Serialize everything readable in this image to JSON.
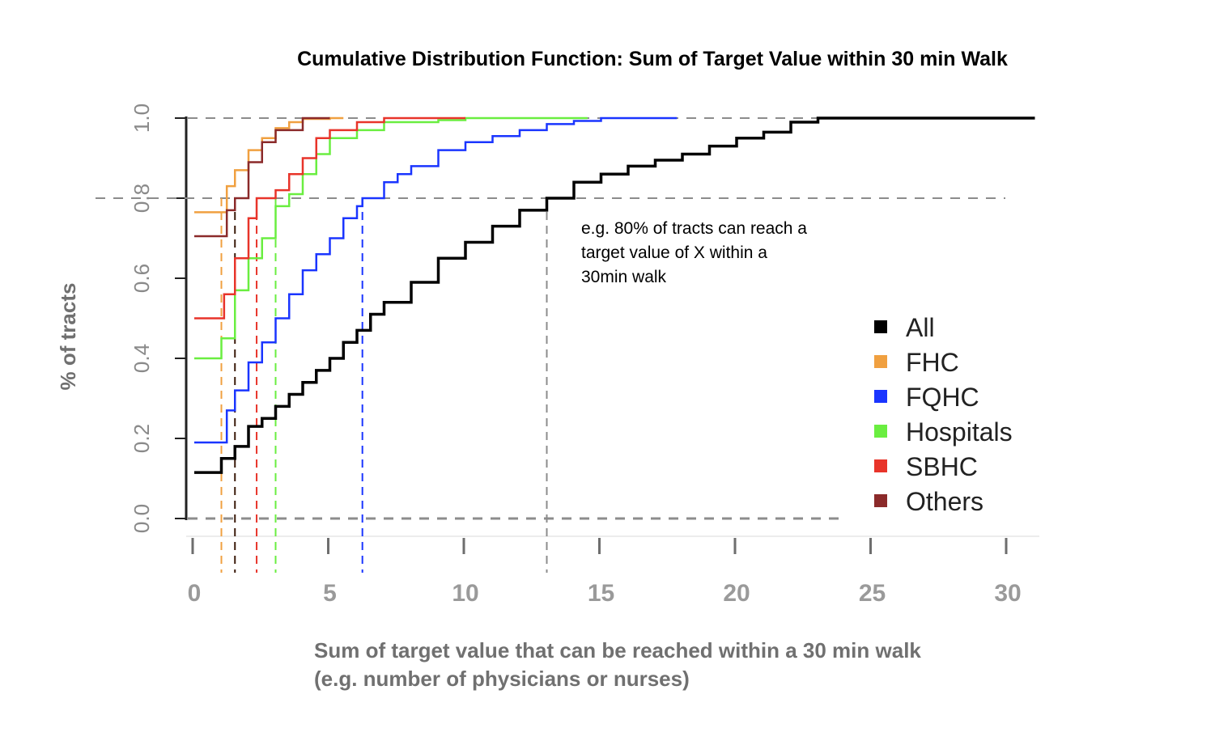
{
  "chart_data": {
    "type": "line",
    "title": "Cumulative Distribution Function: Sum of Target Value within 30 min Walk",
    "xlabel_lines": [
      "Sum of target value that can be reached within a 30 min walk",
      "(e.g. number of physicians or nurses)"
    ],
    "ylabel": "% of tracts",
    "xlim": [
      0,
      31
    ],
    "ylim": [
      0,
      1
    ],
    "x_ticks": [
      "0",
      "5",
      "10",
      "15",
      "20",
      "25",
      "30"
    ],
    "y_ticks": [
      "0.0",
      "0.2",
      "0.4",
      "0.6",
      "0.8",
      "1.0"
    ],
    "annotation_lines": [
      "e.g. 80% of tracts can reach a",
      "target value of X within a",
      "30min walk"
    ],
    "reference_lines": {
      "horizontal": [
        0,
        0.8,
        1.0
      ]
    },
    "series": [
      {
        "name": "All",
        "color": "#000000",
        "x80": 13.0,
        "points": [
          [
            0,
            0.115
          ],
          [
            1,
            0.115
          ],
          [
            1,
            0.15
          ],
          [
            1.5,
            0.18
          ],
          [
            2,
            0.23
          ],
          [
            2.5,
            0.25
          ],
          [
            3,
            0.28
          ],
          [
            3.5,
            0.31
          ],
          [
            4,
            0.34
          ],
          [
            4.5,
            0.37
          ],
          [
            5,
            0.4
          ],
          [
            5.5,
            0.44
          ],
          [
            6,
            0.47
          ],
          [
            6.5,
            0.51
          ],
          [
            7,
            0.54
          ],
          [
            8,
            0.59
          ],
          [
            9,
            0.65
          ],
          [
            10,
            0.69
          ],
          [
            11,
            0.73
          ],
          [
            12,
            0.77
          ],
          [
            13,
            0.8
          ],
          [
            14,
            0.84
          ],
          [
            15,
            0.86
          ],
          [
            16,
            0.88
          ],
          [
            17,
            0.895
          ],
          [
            18,
            0.91
          ],
          [
            19,
            0.93
          ],
          [
            20,
            0.95
          ],
          [
            21,
            0.965
          ],
          [
            22,
            0.99
          ],
          [
            23,
            1.0
          ],
          [
            31,
            1.0
          ]
        ]
      },
      {
        "name": "FHC",
        "color": "#f0a040",
        "x80": 1.0,
        "points": [
          [
            0,
            0.765
          ],
          [
            1,
            0.765
          ],
          [
            1.2,
            0.83
          ],
          [
            1.5,
            0.87
          ],
          [
            2,
            0.92
          ],
          [
            2.5,
            0.95
          ],
          [
            3,
            0.975
          ],
          [
            3.5,
            0.99
          ],
          [
            4,
            0.998
          ],
          [
            5,
            1.0
          ],
          [
            5.5,
            1.0
          ]
        ]
      },
      {
        "name": "FQHC",
        "color": "#1a35ff",
        "x80": 6.2,
        "points": [
          [
            0,
            0.19
          ],
          [
            1,
            0.19
          ],
          [
            1.2,
            0.27
          ],
          [
            1.5,
            0.32
          ],
          [
            2,
            0.39
          ],
          [
            2.5,
            0.44
          ],
          [
            3,
            0.5
          ],
          [
            3.5,
            0.56
          ],
          [
            4,
            0.62
          ],
          [
            4.5,
            0.66
          ],
          [
            5,
            0.7
          ],
          [
            5.5,
            0.75
          ],
          [
            6,
            0.78
          ],
          [
            6.2,
            0.8
          ],
          [
            7,
            0.84
          ],
          [
            7.5,
            0.86
          ],
          [
            8,
            0.88
          ],
          [
            9,
            0.92
          ],
          [
            10,
            0.94
          ],
          [
            11,
            0.955
          ],
          [
            12,
            0.97
          ],
          [
            13,
            0.985
          ],
          [
            14,
            0.993
          ],
          [
            15,
            1.0
          ],
          [
            17.8,
            1.0
          ]
        ]
      },
      {
        "name": "Hospitals",
        "color": "#6aee40",
        "x80": 3.0,
        "points": [
          [
            0,
            0.4
          ],
          [
            1,
            0.4
          ],
          [
            1,
            0.45
          ],
          [
            1.5,
            0.57
          ],
          [
            2,
            0.65
          ],
          [
            2.5,
            0.7
          ],
          [
            3,
            0.78
          ],
          [
            3.5,
            0.81
          ],
          [
            4,
            0.86
          ],
          [
            4.5,
            0.91
          ],
          [
            5,
            0.95
          ],
          [
            6,
            0.97
          ],
          [
            7,
            0.99
          ],
          [
            9,
            0.995
          ],
          [
            10,
            1.0
          ],
          [
            14.5,
            1.0
          ]
        ]
      },
      {
        "name": "SBHC",
        "color": "#e8342a",
        "x80": 2.3,
        "points": [
          [
            0,
            0.5
          ],
          [
            1,
            0.5
          ],
          [
            1.1,
            0.56
          ],
          [
            1.5,
            0.65
          ],
          [
            2,
            0.75
          ],
          [
            2.3,
            0.8
          ],
          [
            3,
            0.82
          ],
          [
            3.5,
            0.86
          ],
          [
            4,
            0.9
          ],
          [
            4.5,
            0.95
          ],
          [
            5,
            0.97
          ],
          [
            6,
            0.99
          ],
          [
            7,
            1.0
          ],
          [
            10,
            1.0
          ]
        ]
      },
      {
        "name": "Others",
        "color": "#8b2a2a",
        "x80": 1.5,
        "points": [
          [
            0,
            0.705
          ],
          [
            1,
            0.705
          ],
          [
            1.2,
            0.77
          ],
          [
            1.5,
            0.8
          ],
          [
            2,
            0.89
          ],
          [
            2.5,
            0.94
          ],
          [
            3,
            0.97
          ],
          [
            4,
            1.0
          ],
          [
            5,
            1.0
          ]
        ]
      }
    ],
    "legend": {
      "position": "right",
      "items": [
        "All",
        "FHC",
        "FQHC",
        "Hospitals",
        "SBHC",
        "Others"
      ]
    }
  }
}
